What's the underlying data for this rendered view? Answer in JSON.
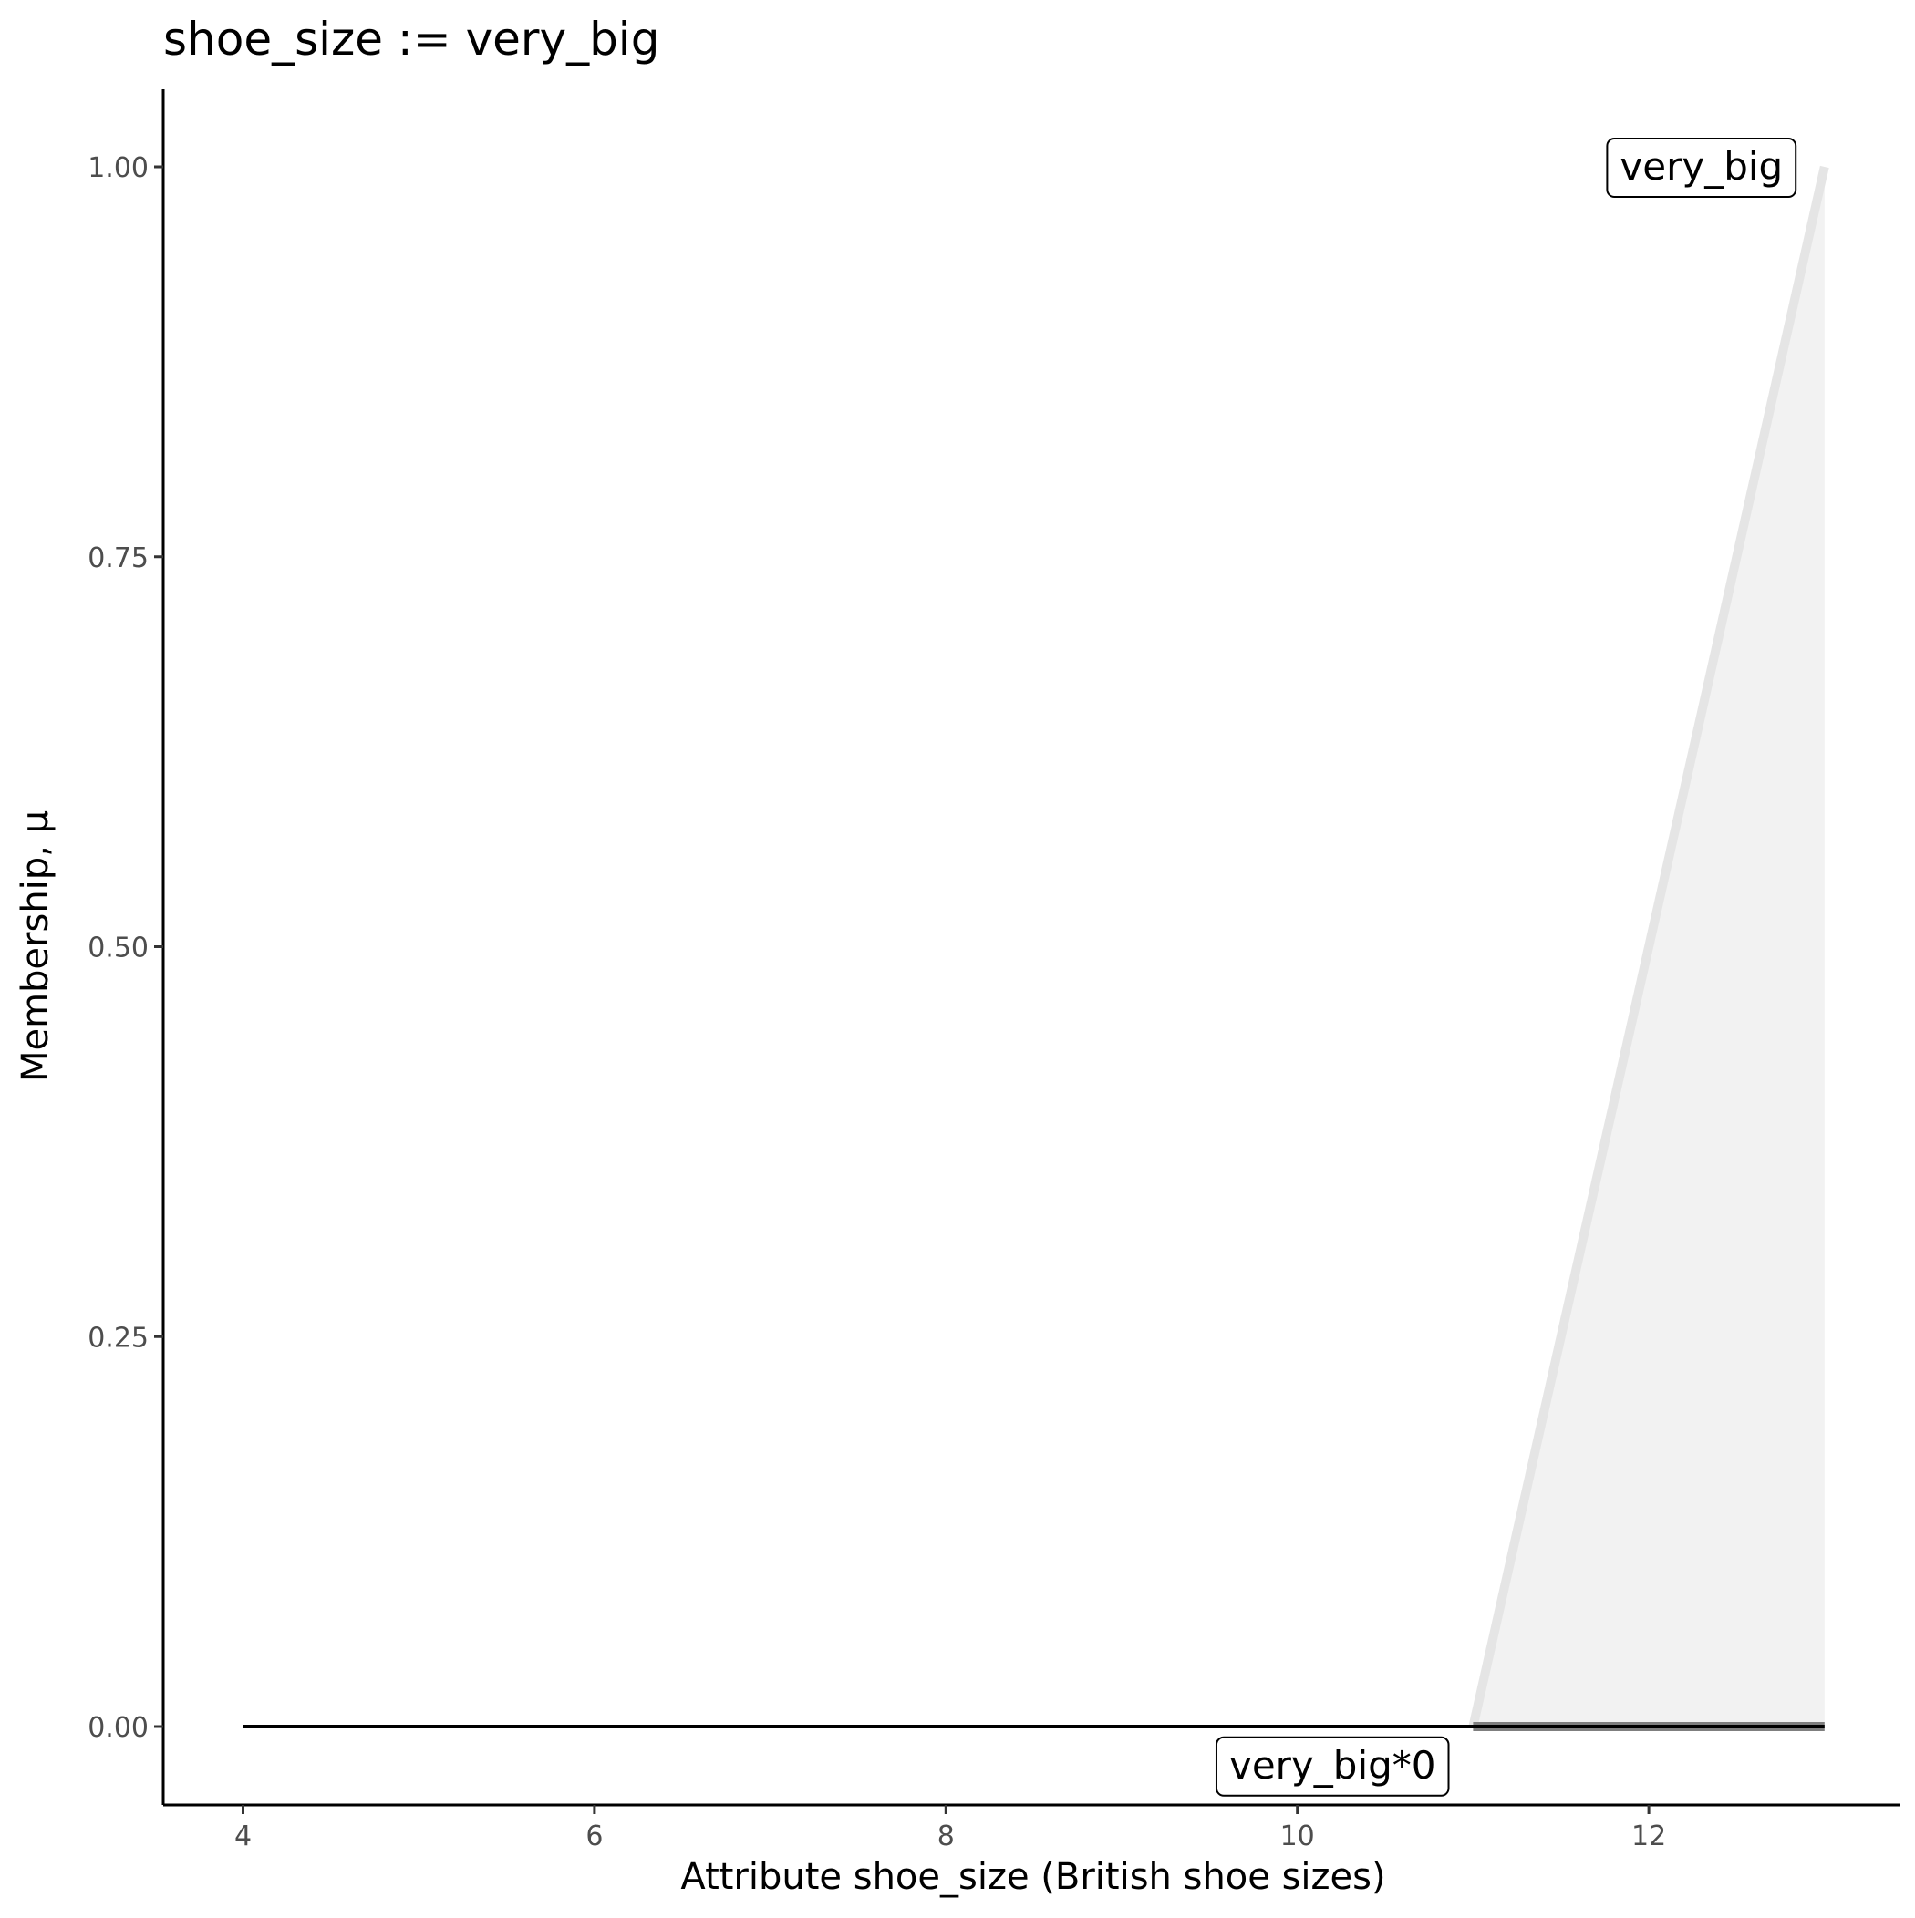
{
  "chart_data": {
    "type": "line",
    "title": "shoe_size := very_big",
    "xlabel": "Attribute shoe_size (British shoe sizes)",
    "ylabel": "Membership, μ",
    "xlim": [
      3.55,
      13.7
    ],
    "ylim": [
      -0.05,
      1.05
    ],
    "xticks": [
      4,
      6,
      8,
      10,
      12
    ],
    "xtick_labels": [
      "4",
      "6",
      "8",
      "10",
      "12"
    ],
    "yticks": [
      0,
      0.25,
      0.5,
      0.75,
      1.0
    ],
    "ytick_labels": [
      "0.00",
      "0.25",
      "0.50",
      "0.75",
      "1.00"
    ],
    "grid": false,
    "series": [
      {
        "name": "very_big",
        "color": "#e5e5e5",
        "fill": "#f2f2f2",
        "x": [
          4,
          11,
          13
        ],
        "y": [
          0,
          0,
          1
        ]
      },
      {
        "name": "very_big*0",
        "color": "#000000",
        "x": [
          4,
          13
        ],
        "y": [
          0,
          0
        ]
      }
    ],
    "annotations": [
      {
        "text": "very_big",
        "x": 13,
        "y": 1.0,
        "anchor": "left-of-point"
      },
      {
        "text": "very_big*0",
        "x": 10.2,
        "y": -0.025,
        "anchor": "center"
      }
    ]
  }
}
